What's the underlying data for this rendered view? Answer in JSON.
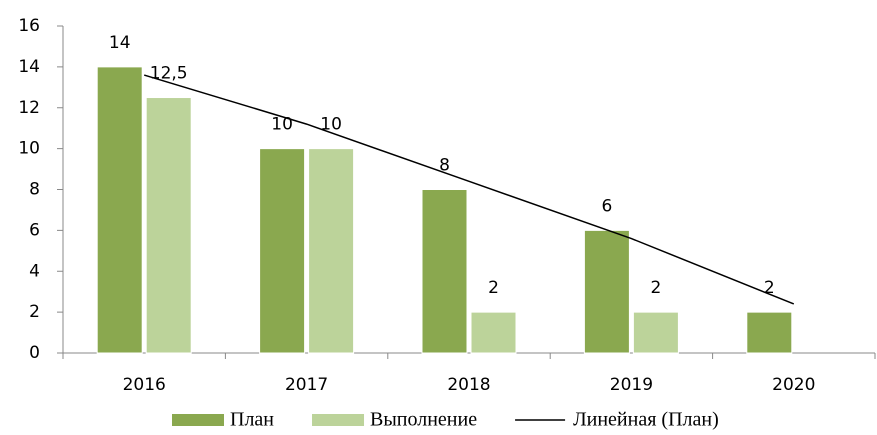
{
  "chart_data": {
    "type": "bar",
    "categories": [
      "2016",
      "2017",
      "2018",
      "2019",
      "2020"
    ],
    "series": [
      {
        "name": "План",
        "color": "#8aa84f",
        "values": [
          14,
          10,
          8,
          6,
          2
        ]
      },
      {
        "name": "Выполнение",
        "color": "#bcd39a",
        "values": [
          12.5,
          10,
          2,
          2,
          null
        ],
        "value_labels": [
          "12,5",
          "10",
          "2",
          "2",
          null
        ]
      },
      {
        "name": "Линейная (План)",
        "color": "#000000",
        "type": "line",
        "values": [
          13.6,
          11.2,
          8.4,
          5.6,
          2.4
        ]
      }
    ],
    "ylim": [
      0,
      16
    ],
    "yticks": [
      0,
      2,
      4,
      6,
      8,
      10,
      12,
      14,
      16
    ],
    "grid": false,
    "legend": "bottom"
  }
}
